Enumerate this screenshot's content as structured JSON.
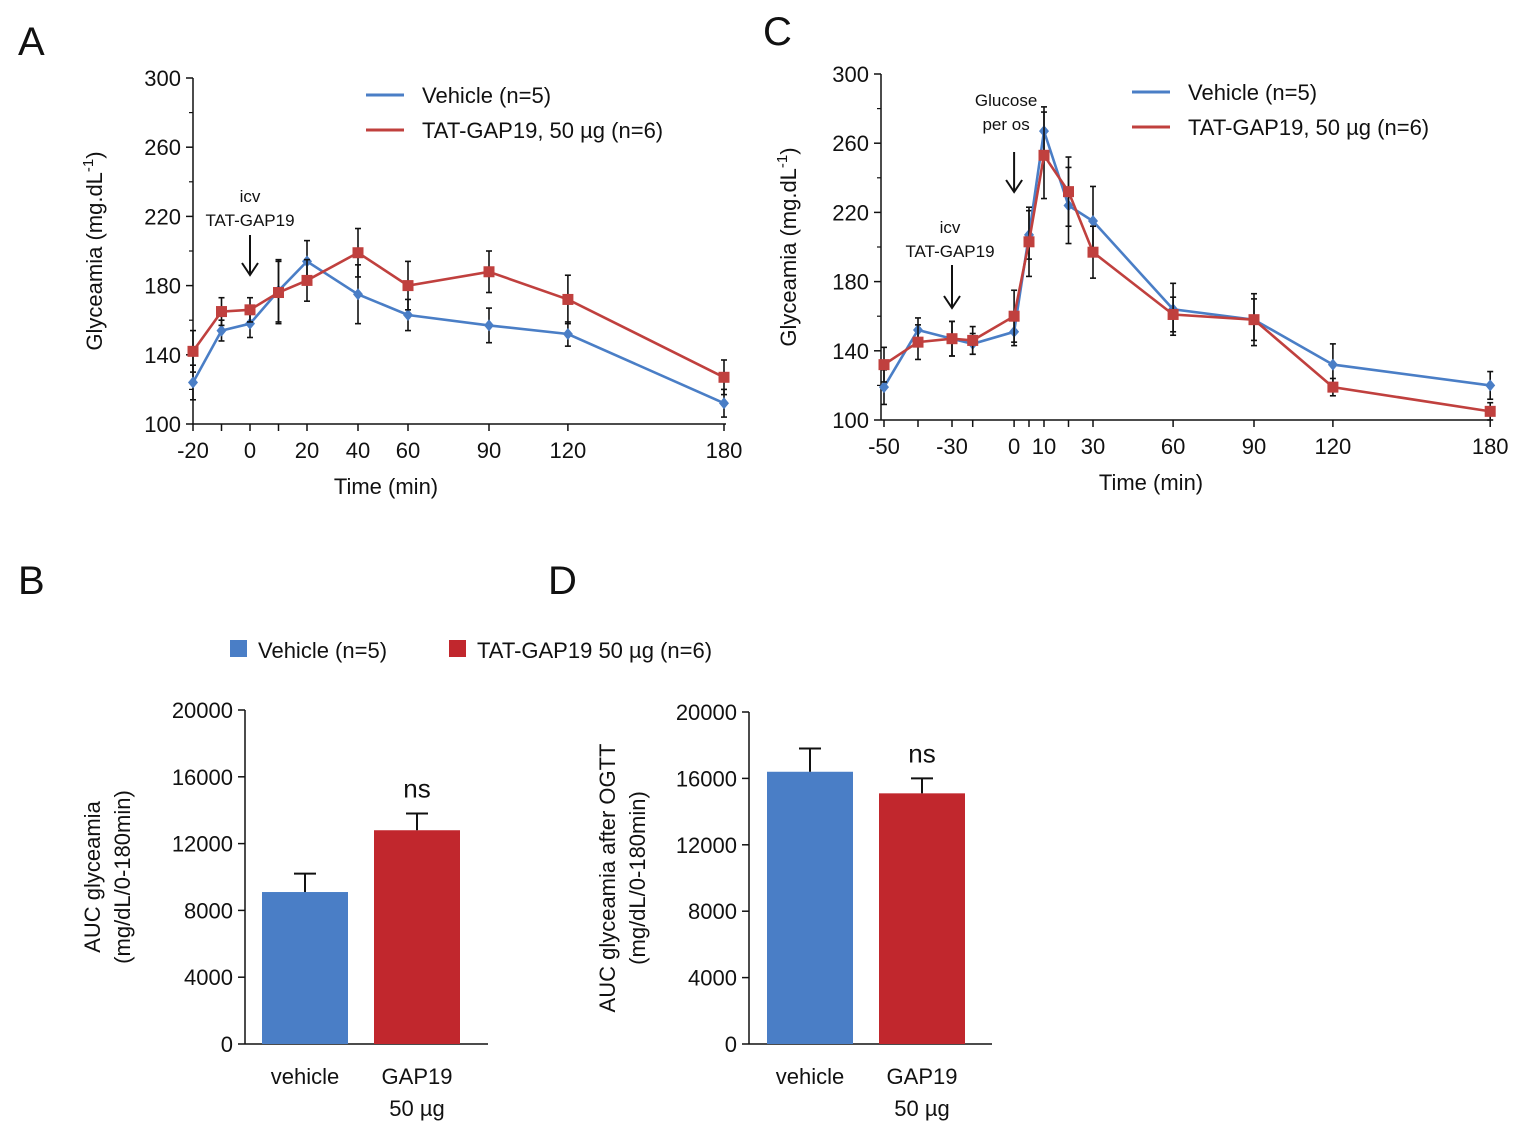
{
  "chart_data": [
    {
      "panel": "A",
      "type": "line",
      "xlabel": "Time (min)",
      "ylabel": "Glyceamia (mg.dL",
      "ylabel_exp": "-1",
      "ylabel_close": ")",
      "x_ticks": [
        "-20",
        "0",
        "20",
        "40",
        "60",
        "90",
        "120",
        "180"
      ],
      "y_ticks": [
        "100",
        "140",
        "180",
        "220",
        "260",
        "300"
      ],
      "ylim": [
        100,
        300
      ],
      "annotations": [
        {
          "id": "icv",
          "lines": [
            "icv",
            "TAT-GAP19"
          ],
          "x": 0
        }
      ],
      "series": [
        {
          "name": "Vehicle (n=5)",
          "color": "#4a7ec6",
          "marker": "diamond",
          "points": [
            {
              "x": -20,
              "y": 124,
              "err": 10
            },
            {
              "x": -10,
              "y": 154,
              "err": 6
            },
            {
              "x": 0,
              "y": 158,
              "err": 8
            },
            {
              "x": 10,
              "y": 177,
              "err": 18
            },
            {
              "x": 20,
              "y": 194,
              "err": 12
            },
            {
              "x": 40,
              "y": 175,
              "err": 17
            },
            {
              "x": 60,
              "y": 163,
              "err": 9
            },
            {
              "x": 90,
              "y": 157,
              "err": 10
            },
            {
              "x": 120,
              "y": 152,
              "err": 7
            },
            {
              "x": 180,
              "y": 112,
              "err": 8
            }
          ]
        },
        {
          "name": "TAT-GAP19, 50 µg (n=6)",
          "color": "#c0403e",
          "marker": "square",
          "points": [
            {
              "x": -20,
              "y": 142,
              "err": 12
            },
            {
              "x": -10,
              "y": 165,
              "err": 8
            },
            {
              "x": 0,
              "y": 166,
              "err": 7
            },
            {
              "x": 10,
              "y": 176,
              "err": 18
            },
            {
              "x": 20,
              "y": 183,
              "err": 12
            },
            {
              "x": 40,
              "y": 199,
              "err": 14
            },
            {
              "x": 60,
              "y": 180,
              "err": 14
            },
            {
              "x": 90,
              "y": 188,
              "err": 12
            },
            {
              "x": 120,
              "y": 172,
              "err": 14
            },
            {
              "x": 180,
              "y": 127,
              "err": 10
            }
          ]
        }
      ]
    },
    {
      "panel": "C",
      "type": "line",
      "xlabel": "Time (min)",
      "ylabel": "Glyceamia (mg.dL",
      "ylabel_exp": "-1",
      "ylabel_close": ")",
      "x_ticks": [
        "-50",
        "-30",
        "0",
        "10",
        "30",
        "60",
        "90",
        "120",
        "180"
      ],
      "y_ticks": [
        "100",
        "140",
        "180",
        "220",
        "260",
        "300"
      ],
      "ylim": [
        100,
        300
      ],
      "annotations": [
        {
          "id": "icv",
          "lines": [
            "icv",
            "TAT-GAP19"
          ],
          "x": -30
        },
        {
          "id": "glucose",
          "lines": [
            "Glucose",
            "per os"
          ],
          "x": 0
        }
      ],
      "series": [
        {
          "name": "Vehicle (n=5)",
          "color": "#4a7ec6",
          "marker": "diamond",
          "points": [
            {
              "x": -50,
              "y": 119,
              "err": 10
            },
            {
              "x": -40,
              "y": 152,
              "err": 7
            },
            {
              "x": -30,
              "y": 147,
              "err": 10
            },
            {
              "x": -20,
              "y": 144,
              "err": 6
            },
            {
              "x": 0,
              "y": 151,
              "err": 8
            },
            {
              "x": 5,
              "y": 207,
              "err": 14
            },
            {
              "x": 10,
              "y": 267,
              "err": 14
            },
            {
              "x": 20,
              "y": 224,
              "err": 22
            },
            {
              "x": 30,
              "y": 215,
              "err": 20
            },
            {
              "x": 60,
              "y": 164,
              "err": 15
            },
            {
              "x": 90,
              "y": 158,
              "err": 15
            },
            {
              "x": 120,
              "y": 132,
              "err": 12
            },
            {
              "x": 180,
              "y": 120,
              "err": 8
            }
          ]
        },
        {
          "name": "TAT-GAP19, 50 µg (n=6)",
          "color": "#c0403e",
          "marker": "square",
          "points": [
            {
              "x": -50,
              "y": 132,
              "err": 10
            },
            {
              "x": -40,
              "y": 145,
              "err": 10
            },
            {
              "x": -30,
              "y": 147,
              "err": 10
            },
            {
              "x": -20,
              "y": 146,
              "err": 8
            },
            {
              "x": 0,
              "y": 160,
              "err": 15
            },
            {
              "x": 5,
              "y": 203,
              "err": 20
            },
            {
              "x": 10,
              "y": 253,
              "err": 25
            },
            {
              "x": 20,
              "y": 232,
              "err": 20
            },
            {
              "x": 30,
              "y": 197,
              "err": 15
            },
            {
              "x": 60,
              "y": 161,
              "err": 10
            },
            {
              "x": 90,
              "y": 158,
              "err": 12
            },
            {
              "x": 120,
              "y": 119,
              "err": 5
            },
            {
              "x": 180,
              "y": 105,
              "err": 5
            }
          ]
        }
      ]
    },
    {
      "panel": "B",
      "type": "bar",
      "categories": [
        [
          "vehicle"
        ],
        [
          "GAP19",
          "50 µg"
        ]
      ],
      "values": [
        9100,
        12800
      ],
      "errors": [
        1100,
        1000
      ],
      "colors": [
        "#4a7ec6",
        "#c1272d"
      ],
      "significance": "ns",
      "y_ticks": [
        "0",
        "4000",
        "8000",
        "12000",
        "16000",
        "20000"
      ],
      "ylim": [
        0,
        20000
      ],
      "ylabel_lines": [
        "AUC glyceamia",
        "(mg/dL/0-180min)"
      ]
    },
    {
      "panel": "D",
      "type": "bar",
      "categories": [
        [
          "vehicle"
        ],
        [
          "GAP19",
          "50 µg"
        ]
      ],
      "values": [
        16400,
        15100
      ],
      "errors": [
        1400,
        900
      ],
      "colors": [
        "#4a7ec6",
        "#c1272d"
      ],
      "significance": "ns",
      "y_ticks": [
        "0",
        "4000",
        "8000",
        "12000",
        "16000",
        "20000"
      ],
      "ylim": [
        0,
        20000
      ],
      "ylabel_lines": [
        "AUC glyceamia after OGTT",
        "(mg/dL/0-180min)"
      ]
    }
  ],
  "bar_legend": [
    {
      "label": "Vehicle (n=5)",
      "color": "#4a7ec6"
    },
    {
      "label": "TAT-GAP19 50 µg (n=6)",
      "color": "#c1272d"
    }
  ]
}
